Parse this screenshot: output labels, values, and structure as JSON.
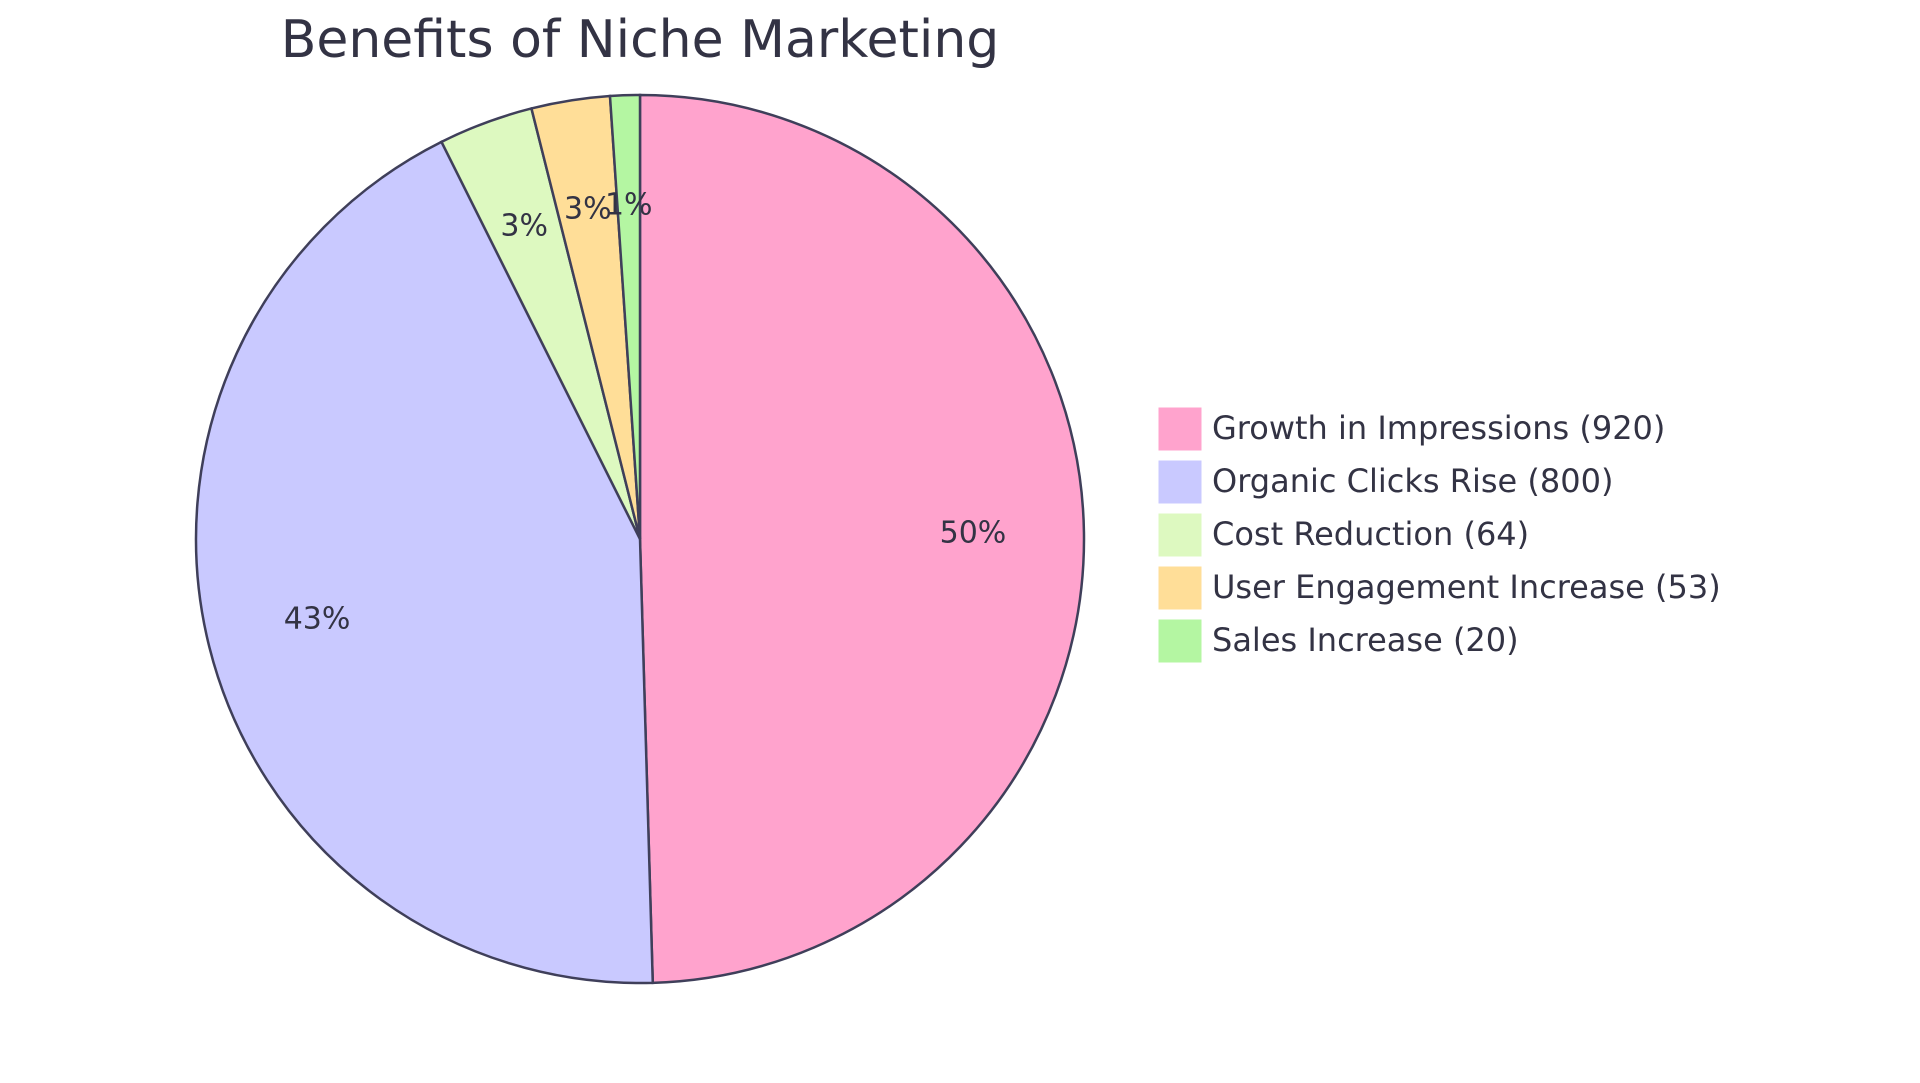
{
  "chart_data": {
    "type": "pie",
    "title": "Benefits of Niche Marketing",
    "categories": [
      "Growth in Impressions (920)",
      "Organic Clicks Rise (800)",
      "Cost Reduction (64)",
      "User Engagement Increase (53)",
      "Sales Increase (20)"
    ],
    "values": [
      920,
      800,
      64,
      53,
      20
    ],
    "value_labels": [
      "50%",
      "43%",
      "3%",
      "3%",
      "1%"
    ],
    "colors": [
      "#ffa3cd",
      "#c9c9ff",
      "#ddf9c0",
      "#ffde98",
      "#b4f6a2"
    ],
    "legend": "right"
  }
}
